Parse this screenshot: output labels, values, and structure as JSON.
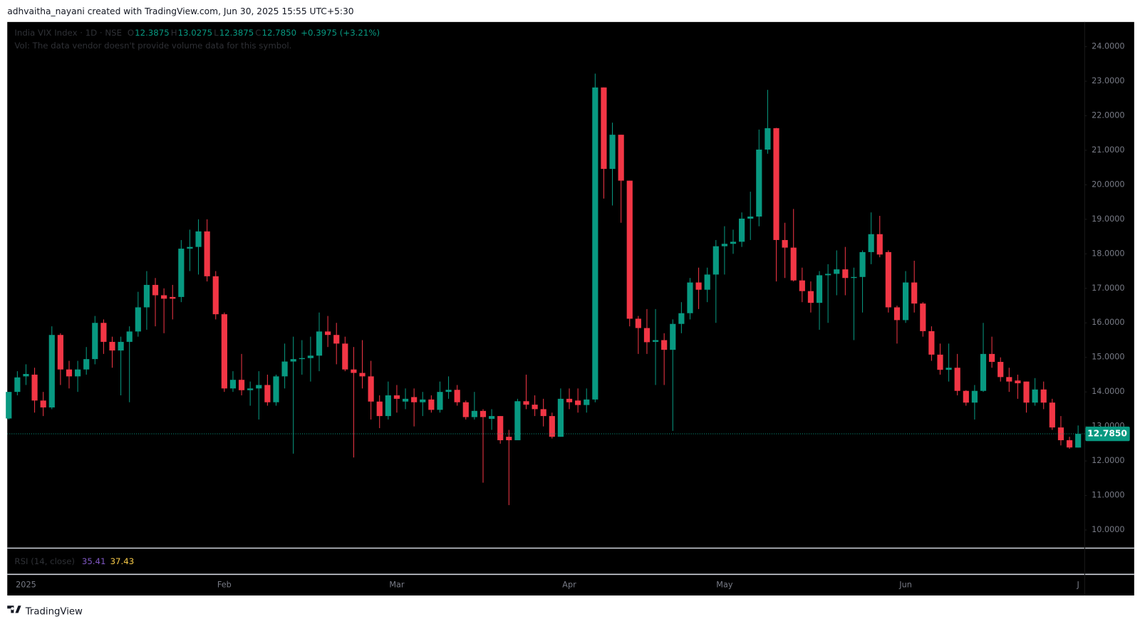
{
  "header": {
    "text": "adhvaitha_nayani created with TradingView.com, Jun 30, 2025 15:55 UTC+5:30"
  },
  "footer": {
    "brand": "TradingView"
  },
  "chart_data": {
    "type": "candlestick",
    "title": "India VIX Index · 1D · NSE",
    "legend": [
      {
        "key": "O",
        "text": "12.3875"
      },
      {
        "key": "H",
        "text": "13.0275"
      },
      {
        "key": "L",
        "text": "12.3875"
      },
      {
        "key": "C",
        "text": "12.7850"
      }
    ],
    "change": "+0.3975 (+3.21%)",
    "volume_note": "Vol: The data vendor doesn't provide volume data for this symbol.",
    "up_color": "#089981",
    "down_color": "#f23645",
    "last_price": {
      "value": 12.785,
      "label": "12.7850"
    },
    "ylim": [
      9.494,
      24.717
    ],
    "yticks": [
      {
        "value": 10,
        "label": "10.0000"
      },
      {
        "value": 11,
        "label": "11.0000"
      },
      {
        "value": 12,
        "label": "12.0000"
      },
      {
        "value": 13,
        "label": "13.0000"
      },
      {
        "value": 14,
        "label": "14.0000"
      },
      {
        "value": 15,
        "label": "15.0000"
      },
      {
        "value": 16,
        "label": "16.0000"
      },
      {
        "value": 17,
        "label": "17.0000"
      },
      {
        "value": 18,
        "label": "18.0000"
      },
      {
        "value": 19,
        "label": "19.0000"
      },
      {
        "value": 20,
        "label": "20.0000"
      },
      {
        "value": 21,
        "label": "21.0000"
      },
      {
        "value": 22,
        "label": "22.0000"
      },
      {
        "value": 23,
        "label": "23.0000"
      },
      {
        "value": 24,
        "label": "24.0000"
      }
    ],
    "grid": false,
    "categories": [
      null,
      null,
      "2025",
      null,
      null,
      null,
      null,
      null,
      null,
      null,
      null,
      null,
      null,
      null,
      null,
      null,
      null,
      null,
      null,
      null,
      null,
      null,
      null,
      null,
      null,
      "Feb",
      null,
      null,
      null,
      null,
      null,
      null,
      null,
      null,
      null,
      null,
      null,
      null,
      null,
      null,
      null,
      null,
      null,
      null,
      null,
      "Mar",
      null,
      null,
      null,
      null,
      null,
      null,
      null,
      null,
      null,
      null,
      null,
      null,
      null,
      null,
      null,
      null,
      null,
      null,
      null,
      "Apr",
      null,
      null,
      null,
      null,
      null,
      null,
      null,
      null,
      null,
      null,
      null,
      null,
      null,
      null,
      null,
      null,
      null,
      "May",
      null,
      null,
      null,
      null,
      null,
      null,
      null,
      null,
      null,
      null,
      null,
      null,
      null,
      null,
      null,
      null,
      null,
      null,
      null,
      null,
      "Jun",
      null,
      null,
      null,
      null,
      null,
      null,
      null,
      null,
      null,
      null,
      null,
      null,
      null,
      null,
      null,
      null,
      null,
      null,
      null,
      "J"
    ],
    "open": [
      13.23,
      14.0,
      14.45,
      14.5,
      13.75,
      13.55,
      15.65,
      14.65,
      14.45,
      14.65,
      14.95,
      16.0,
      15.45,
      15.2,
      15.45,
      15.75,
      16.45,
      17.1,
      16.8,
      16.75,
      16.75,
      18.15,
      18.2,
      18.65,
      17.35,
      16.25,
      14.1,
      14.35,
      14.05,
      14.1,
      14.2,
      13.7,
      14.45,
      14.88,
      14.95,
      14.98,
      15.05,
      15.75,
      15.65,
      15.4,
      14.65,
      14.55,
      14.45,
      13.72,
      13.3,
      13.9,
      13.72,
      13.85,
      13.7,
      13.78,
      13.48,
      14.0,
      14.06,
      13.7,
      13.27,
      13.45,
      13.22,
      13.3,
      12.7,
      12.6,
      13.73,
      13.63,
      13.5,
      13.3,
      12.7,
      13.8,
      13.75,
      13.62,
      13.78,
      22.82,
      20.46,
      21.45,
      20.12,
      16.12,
      15.85,
      15.45,
      15.5,
      15.22,
      15.97,
      16.28,
      17.17,
      16.96,
      17.4,
      18.22,
      18.29,
      18.35,
      19.02,
      19.08,
      21.02,
      21.64,
      18.4,
      18.18,
      17.23,
      16.92,
      16.58,
      17.38,
      17.42,
      17.55,
      17.3,
      17.33,
      18.05,
      18.57,
      18.05,
      16.45,
      16.08,
      17.17,
      16.56,
      15.76,
      15.08,
      14.64,
      14.7,
      14.03,
      13.69,
      14.03,
      15.1,
      14.87,
      14.43,
      14.33,
      14.3,
      13.69,
      14.07,
      13.69,
      12.97,
      12.6,
      12.3875
    ],
    "high": [
      14.0,
      14.6,
      14.8,
      14.7,
      14.0,
      15.9,
      15.7,
      14.9,
      14.9,
      15.3,
      16.2,
      16.1,
      15.6,
      15.6,
      15.9,
      16.9,
      17.5,
      17.3,
      17.0,
      17.1,
      18.4,
      18.7,
      19.0,
      19.0,
      17.5,
      16.3,
      14.6,
      15.1,
      14.3,
      14.6,
      14.5,
      14.5,
      15.4,
      15.6,
      15.5,
      15.6,
      16.3,
      16.2,
      16.0,
      15.6,
      15.3,
      15.5,
      14.9,
      13.9,
      14.3,
      14.2,
      14.1,
      14.1,
      14.0,
      13.9,
      14.3,
      14.45,
      14.2,
      13.75,
      14.0,
      13.5,
      13.5,
      13.3,
      12.9,
      13.8,
      14.5,
      13.9,
      13.8,
      13.4,
      14.1,
      14.1,
      14.1,
      14.1,
      23.22,
      22.82,
      21.8,
      21.45,
      20.12,
      16.2,
      16.4,
      16.4,
      15.7,
      16.1,
      16.6,
      17.3,
      17.6,
      17.6,
      18.4,
      18.8,
      18.7,
      19.2,
      19.8,
      21.6,
      22.75,
      21.65,
      18.9,
      19.3,
      17.6,
      17.2,
      17.5,
      17.7,
      18.1,
      18.2,
      17.6,
      18.1,
      19.2,
      19.1,
      18.1,
      16.5,
      17.5,
      17.8,
      16.6,
      15.9,
      15.4,
      15.4,
      15.1,
      14.05,
      14.2,
      16.0,
      15.6,
      15.0,
      14.7,
      14.5,
      14.3,
      14.4,
      14.3,
      13.8,
      13.3,
      12.7,
      13.0275
    ],
    "low": [
      13.2,
      13.9,
      14.2,
      13.4,
      13.3,
      13.5,
      14.2,
      14.1,
      14.0,
      14.5,
      14.8,
      15.1,
      14.7,
      13.9,
      13.7,
      15.6,
      15.8,
      15.9,
      15.7,
      16.1,
      16.6,
      17.5,
      17.4,
      17.2,
      16.1,
      14.0,
      14.0,
      13.9,
      13.6,
      13.2,
      13.6,
      13.6,
      14.1,
      12.21,
      14.5,
      14.3,
      14.6,
      15.3,
      14.8,
      14.6,
      12.1,
      14.1,
      13.2,
      12.95,
      13.2,
      13.4,
      13.5,
      13.0,
      13.3,
      13.4,
      13.4,
      13.8,
      13.6,
      13.2,
      13.2,
      11.37,
      12.9,
      12.5,
      10.72,
      12.6,
      13.5,
      13.3,
      13.0,
      12.65,
      12.7,
      13.5,
      13.4,
      13.4,
      13.7,
      19.6,
      19.4,
      18.9,
      15.9,
      15.1,
      15.1,
      14.2,
      14.2,
      12.87,
      15.7,
      16.1,
      16.4,
      16.6,
      16.0,
      17.4,
      18.0,
      18.2,
      18.4,
      18.8,
      20.9,
      17.2,
      17.3,
      17.2,
      16.6,
      16.3,
      15.8,
      16.0,
      16.8,
      16.8,
      15.5,
      16.3,
      17.7,
      17.9,
      16.3,
      15.4,
      16.0,
      16.3,
      15.6,
      14.9,
      14.5,
      14.3,
      13.9,
      13.6,
      13.2,
      14.0,
      14.7,
      14.3,
      14.0,
      13.8,
      13.4,
      13.6,
      13.5,
      12.9,
      12.45,
      12.35,
      12.3875
    ],
    "close": [
      14.0,
      14.42,
      14.52,
      13.75,
      13.55,
      15.65,
      14.65,
      14.45,
      14.65,
      14.95,
      16.0,
      15.45,
      15.2,
      15.45,
      15.75,
      16.45,
      17.1,
      16.8,
      16.7,
      16.7,
      18.15,
      18.2,
      18.65,
      17.35,
      16.25,
      14.1,
      14.35,
      14.05,
      14.1,
      14.2,
      13.7,
      14.45,
      14.88,
      14.95,
      14.98,
      15.05,
      15.75,
      15.65,
      15.4,
      14.65,
      14.55,
      14.45,
      13.72,
      13.3,
      13.9,
      13.8,
      13.8,
      13.7,
      13.78,
      13.48,
      14.0,
      14.06,
      13.7,
      13.27,
      13.45,
      13.27,
      13.3,
      12.6,
      12.6,
      13.73,
      13.63,
      13.5,
      13.3,
      12.7,
      13.8,
      13.7,
      13.62,
      13.78,
      22.82,
      20.46,
      21.45,
      20.12,
      16.12,
      15.85,
      15.44,
      15.5,
      15.22,
      15.97,
      16.28,
      17.17,
      16.96,
      17.4,
      18.22,
      18.29,
      18.35,
      19.02,
      19.08,
      21.02,
      21.64,
      18.4,
      18.18,
      17.23,
      16.92,
      16.58,
      17.38,
      17.42,
      17.55,
      17.3,
      17.33,
      18.05,
      18.57,
      17.98,
      16.45,
      16.08,
      17.17,
      16.56,
      15.76,
      15.08,
      14.64,
      14.7,
      14.03,
      13.69,
      14.03,
      15.1,
      14.87,
      14.43,
      14.3,
      14.25,
      13.69,
      14.07,
      13.69,
      12.97,
      12.6,
      12.39,
      12.785
    ],
    "rsi": {
      "label": "RSI (14, close)",
      "values": [
        35.41,
        37.43
      ],
      "colors": [
        "#7e57c2",
        "#f7c948"
      ]
    }
  }
}
